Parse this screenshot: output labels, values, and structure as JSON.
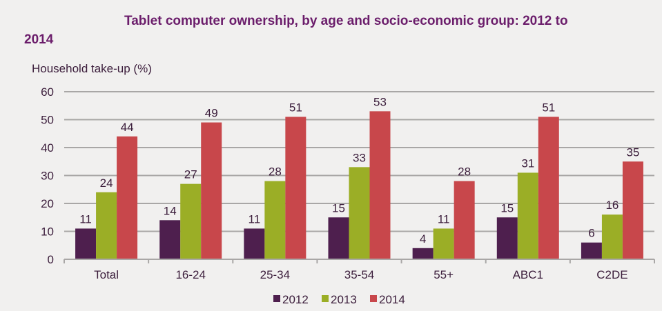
{
  "chart_data": {
    "type": "bar",
    "title_line1": "Tablet computer ownership, by age and socio-economic group: 2012 to",
    "title_line2": "2014",
    "ylabel": "Household take-up (%)",
    "xlabel": "",
    "ylim": [
      0,
      60
    ],
    "yticks": [
      0,
      10,
      20,
      30,
      40,
      50,
      60
    ],
    "grid": true,
    "legend_position": "bottom",
    "categories": [
      "Total",
      "16-24",
      "25-34",
      "35-54",
      "55+",
      "ABC1",
      "C2DE"
    ],
    "series": [
      {
        "name": "2012",
        "color": "#4e1f4e",
        "values": [
          11,
          14,
          11,
          15,
          4,
          15,
          6
        ]
      },
      {
        "name": "2013",
        "color": "#9bae26",
        "values": [
          24,
          27,
          28,
          33,
          11,
          31,
          16
        ]
      },
      {
        "name": "2014",
        "color": "#c8474b",
        "values": [
          44,
          49,
          51,
          53,
          28,
          51,
          35
        ]
      }
    ]
  }
}
